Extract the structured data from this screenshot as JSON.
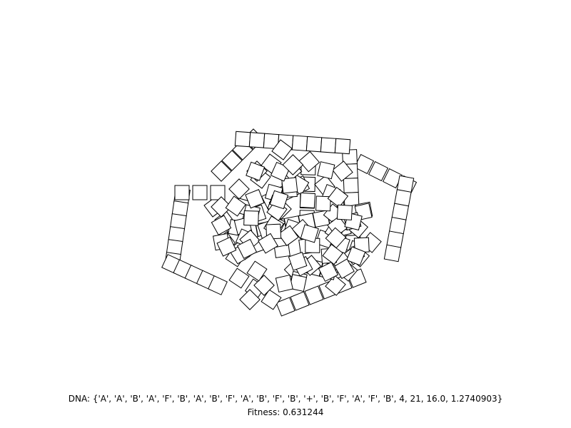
{
  "window": {
    "background": "#ffffff",
    "stroke_color": "#000000",
    "fill_color": "#ffffff"
  },
  "info": {
    "dna_label": "DNA: ",
    "dna_text": "{'A', 'A', 'B', 'A', 'F', 'B', 'A', 'B', 'F', 'A', 'B', 'F', 'B', '+', 'B', 'F', 'A', 'F', 'B', 4, 21, 16.0, 1.2740903}",
    "fitness_label": "Fitness: ",
    "fitness_value": "0.631244"
  }
}
